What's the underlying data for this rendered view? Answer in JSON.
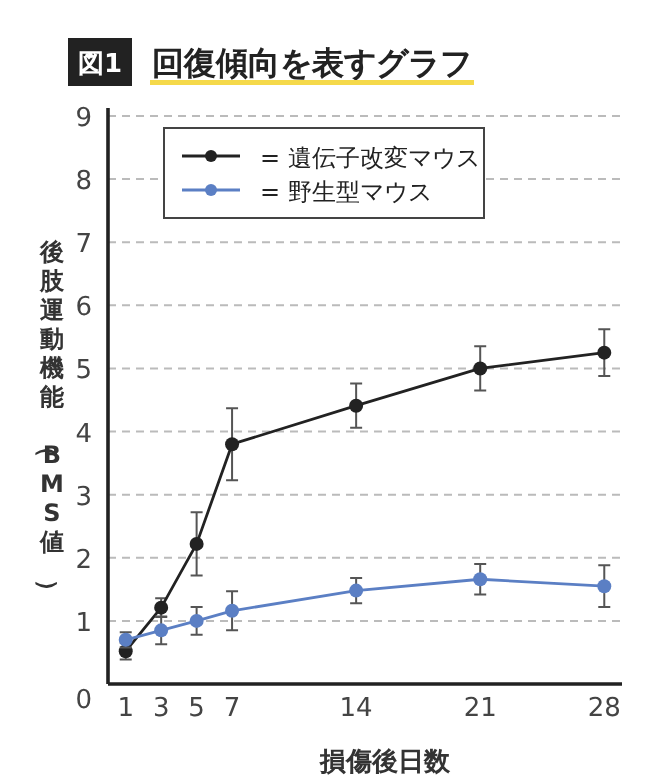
{
  "chart_data": {
    "type": "line",
    "title": "回復傾向を表すグラフ",
    "annotations": [
      "図1"
    ],
    "xlabel": "損傷後日数",
    "ylabel": "後肢運動機能（BMS値）",
    "x": [
      1,
      3,
      5,
      7,
      14,
      21,
      28
    ],
    "xlim": [
      0,
      29
    ],
    "xticks": [
      1,
      3,
      5,
      7,
      14,
      21,
      28
    ],
    "ylim": [
      0,
      9
    ],
    "yticks": [
      0,
      1,
      2,
      3,
      4,
      5,
      6,
      7,
      8,
      9
    ],
    "grid": "y",
    "legend": "top left",
    "marker": "circle",
    "line_style": "solid",
    "series": [
      {
        "name": "= 遺伝子改変マウス",
        "color": "#222222",
        "values": [
          0.52,
          1.21,
          2.22,
          3.8,
          4.41,
          5.0,
          5.25
        ],
        "errors": [
          0.13,
          0.15,
          0.5,
          0.57,
          0.35,
          0.35,
          0.37
        ]
      },
      {
        "name": "= 野生型マウス",
        "color": "#5b7fc4",
        "values": [
          0.7,
          0.85,
          1.0,
          1.16,
          1.48,
          1.66,
          1.55
        ],
        "errors": [
          0.12,
          0.22,
          0.22,
          0.31,
          0.2,
          0.24,
          0.33
        ]
      }
    ]
  }
}
